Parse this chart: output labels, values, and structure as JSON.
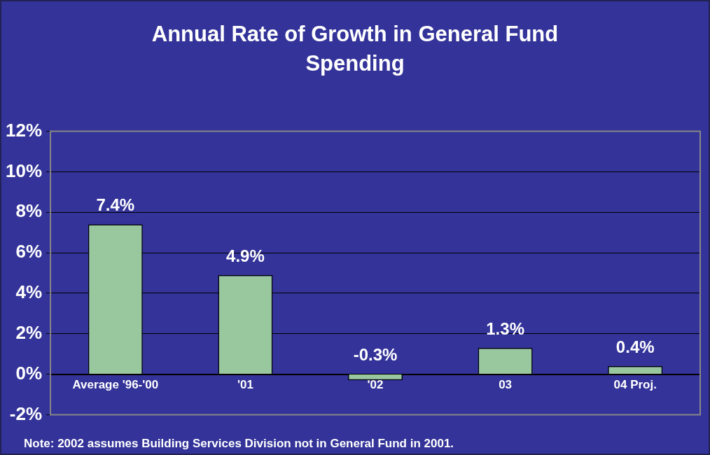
{
  "chart_data": {
    "type": "bar",
    "title": "Annual Rate of Growth in General Fund Spending",
    "categories": [
      "Average '96-'00",
      "'01",
      "'02",
      "03",
      "04 Proj."
    ],
    "values": [
      7.4,
      4.9,
      -0.3,
      1.3,
      0.4
    ],
    "value_labels": [
      "7.4%",
      "4.9%",
      "-0.3%",
      "1.3%",
      "0.4%"
    ],
    "color": "#99c89f",
    "ylim": [
      -2,
      12
    ],
    "yticks": [
      {
        "value": -2,
        "label": "-2%"
      },
      {
        "value": 0,
        "label": "0%"
      },
      {
        "value": 2,
        "label": "2%"
      },
      {
        "value": 4,
        "label": "4%"
      },
      {
        "value": 6,
        "label": "6%"
      },
      {
        "value": 8,
        "label": "8%"
      },
      {
        "value": 10,
        "label": "10%"
      },
      {
        "value": 12,
        "label": "12%"
      }
    ],
    "grid": "y",
    "legend": false,
    "annotations": [
      "Note: 2002 assumes Building Services Division not in General Fund in 2001."
    ]
  }
}
